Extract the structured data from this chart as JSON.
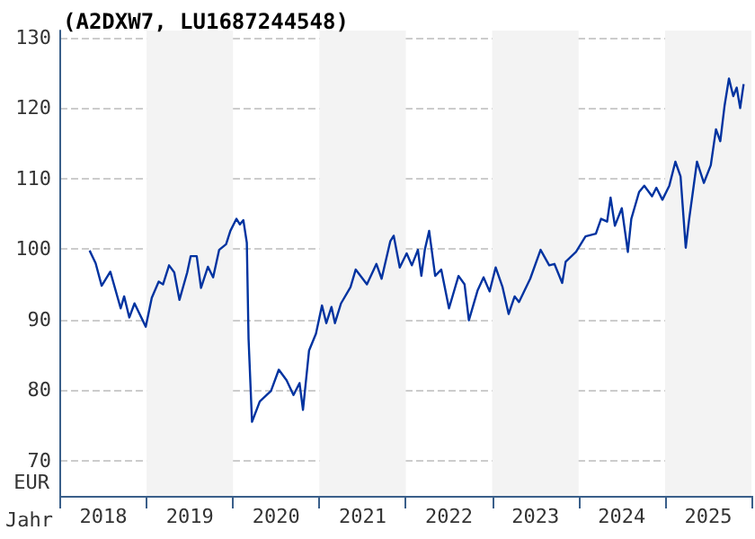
{
  "chart_data": {
    "type": "line",
    "title": "(A2DXW7, LU1687244548)",
    "xlabel": "Jahr",
    "ylabel": "EUR",
    "x": [
      2018.34,
      2018.41,
      2018.48,
      2018.58,
      2018.7,
      2018.74,
      2018.8,
      2018.86,
      2018.99,
      2019.06,
      2019.14,
      2019.19,
      2019.26,
      2019.32,
      2019.38,
      2019.47,
      2019.51,
      2019.58,
      2019.63,
      2019.71,
      2019.77,
      2019.84,
      2019.92,
      2019.97,
      2020.04,
      2020.08,
      2020.12,
      2020.16,
      2020.18,
      2020.22,
      2020.31,
      2020.44,
      2020.53,
      2020.62,
      2020.7,
      2020.77,
      2020.81,
      2020.88,
      2020.96,
      2021.03,
      2021.08,
      2021.14,
      2021.18,
      2021.25,
      2021.36,
      2021.42,
      2021.55,
      2021.66,
      2021.72,
      2021.82,
      2021.86,
      2021.93,
      2022.01,
      2022.07,
      2022.14,
      2022.18,
      2022.22,
      2022.27,
      2022.34,
      2022.41,
      2022.5,
      2022.61,
      2022.68,
      2022.73,
      2022.83,
      2022.9,
      2022.97,
      2023.04,
      2023.12,
      2023.19,
      2023.26,
      2023.31,
      2023.44,
      2023.56,
      2023.66,
      2023.72,
      2023.81,
      2023.85,
      2023.97,
      2024.08,
      2024.2,
      2024.26,
      2024.33,
      2024.37,
      2024.42,
      2024.5,
      2024.57,
      2024.61,
      2024.7,
      2024.76,
      2024.85,
      2024.9,
      2024.97,
      2025.05,
      2025.12,
      2025.18,
      2025.24,
      2025.28,
      2025.37,
      2025.45,
      2025.53,
      2025.59,
      2025.64,
      2025.69,
      2025.74,
      2025.79,
      2025.83,
      2025.87,
      2025.91
    ],
    "series": [
      {
        "color": "#0033a0",
        "values": [
          99.8,
          98.0,
          94.8,
          96.8,
          91.6,
          93.3,
          90.3,
          92.3,
          89.0,
          93.1,
          95.4,
          95.0,
          97.7,
          96.7,
          92.8,
          96.7,
          99.0,
          99.0,
          94.5,
          97.5,
          96.0,
          99.9,
          100.7,
          102.6,
          104.3,
          103.5,
          104.1,
          100.9,
          87.3,
          75.5,
          78.4,
          79.9,
          82.9,
          81.4,
          79.3,
          81.0,
          77.2,
          85.6,
          88.0,
          92.0,
          89.5,
          91.8,
          89.5,
          92.3,
          94.6,
          97.1,
          95.0,
          97.9,
          95.8,
          101.1,
          101.9,
          97.4,
          99.4,
          97.7,
          99.9,
          96.2,
          99.9,
          102.6,
          96.2,
          97.1,
          91.6,
          96.2,
          95.0,
          89.9,
          94.1,
          96.0,
          94.0,
          97.4,
          94.6,
          90.8,
          93.3,
          92.5,
          95.8,
          99.9,
          97.7,
          97.9,
          95.2,
          98.2,
          99.6,
          101.8,
          102.2,
          104.3,
          103.9,
          107.3,
          103.3,
          105.8,
          99.6,
          104.3,
          108.1,
          109.0,
          107.5,
          108.7,
          107.0,
          109.0,
          112.4,
          110.3,
          100.2,
          104.3,
          112.4,
          109.4,
          111.9,
          117.0,
          115.3,
          120.4,
          124.2,
          121.7,
          122.9,
          120.0,
          123.4
        ]
      }
    ],
    "xlim": [
      2018,
      2026
    ],
    "xticks": [
      {
        "value": 2018,
        "label": null
      },
      {
        "value": 2018.5,
        "label": "2018"
      },
      {
        "value": 2019,
        "label": null
      },
      {
        "value": 2019.5,
        "label": "2019"
      },
      {
        "value": 2020,
        "label": null
      },
      {
        "value": 2020.5,
        "label": "2020"
      },
      {
        "value": 2021,
        "label": null
      },
      {
        "value": 2021.5,
        "label": "2021"
      },
      {
        "value": 2022,
        "label": null
      },
      {
        "value": 2022.5,
        "label": "2022"
      },
      {
        "value": 2023,
        "label": null
      },
      {
        "value": 2023.5,
        "label": "2023"
      },
      {
        "value": 2024,
        "label": null
      },
      {
        "value": 2024.5,
        "label": "2024"
      },
      {
        "value": 2025,
        "label": null
      },
      {
        "value": 2025.5,
        "label": "2025"
      },
      {
        "value": 2026,
        "label": null
      }
    ],
    "ylim": [
      65,
      131
    ],
    "yticks": [
      70,
      80,
      90,
      100,
      110,
      120,
      130
    ],
    "bands": [
      {
        "axis": "x",
        "from": 2019,
        "to": 2020,
        "color": "#f3f3f3"
      },
      {
        "axis": "x",
        "from": 2021,
        "to": 2022,
        "color": "#f3f3f3"
      },
      {
        "axis": "x",
        "from": 2023,
        "to": 2024,
        "color": "#f3f3f3"
      },
      {
        "axis": "x",
        "from": 2025,
        "to": 2026,
        "color": "#f3f3f3"
      }
    ],
    "grid": "y",
    "marker": "none",
    "line_style": "solid"
  }
}
